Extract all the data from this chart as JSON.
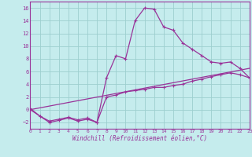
{
  "xlabel": "Windchill (Refroidissement éolien,°C)",
  "bg_color": "#c5eced",
  "grid_color": "#9dcfcf",
  "line_color": "#993399",
  "xlim": [
    0,
    23
  ],
  "ylim": [
    -3,
    17
  ],
  "xticks": [
    0,
    1,
    2,
    3,
    4,
    5,
    6,
    7,
    8,
    9,
    10,
    11,
    12,
    13,
    14,
    15,
    16,
    17,
    18,
    19,
    20,
    21,
    22,
    23
  ],
  "yticks": [
    -2,
    0,
    2,
    4,
    6,
    8,
    10,
    12,
    14,
    16
  ],
  "curve1_x": [
    0,
    1,
    2,
    3,
    4,
    5,
    6,
    7,
    8,
    9,
    10,
    11,
    12,
    13,
    14,
    15,
    16,
    17,
    18,
    19,
    20,
    21,
    22,
    23
  ],
  "curve1_y": [
    0.2,
    -1.0,
    -2.0,
    -1.7,
    -1.3,
    -1.8,
    -1.5,
    -2.0,
    5.0,
    8.5,
    8.0,
    14.0,
    16.0,
    15.8,
    13.0,
    12.5,
    10.5,
    9.5,
    8.5,
    7.5,
    7.3,
    7.5,
    6.5,
    5.0
  ],
  "curve2_x": [
    0,
    1,
    2,
    3,
    4,
    5,
    6,
    7,
    8,
    9,
    10,
    11,
    12,
    13,
    14,
    15,
    16,
    17,
    18,
    19,
    20,
    21,
    22,
    23
  ],
  "curve2_y": [
    0.0,
    -1.0,
    -1.8,
    -1.5,
    -1.2,
    -1.6,
    -1.3,
    -2.0,
    2.0,
    2.3,
    2.8,
    3.0,
    3.2,
    3.5,
    3.5,
    3.8,
    4.0,
    4.5,
    4.8,
    5.2,
    5.5,
    5.8,
    5.5,
    5.0
  ],
  "curve3_x": [
    0,
    23
  ],
  "curve3_y": [
    0.0,
    6.5
  ]
}
